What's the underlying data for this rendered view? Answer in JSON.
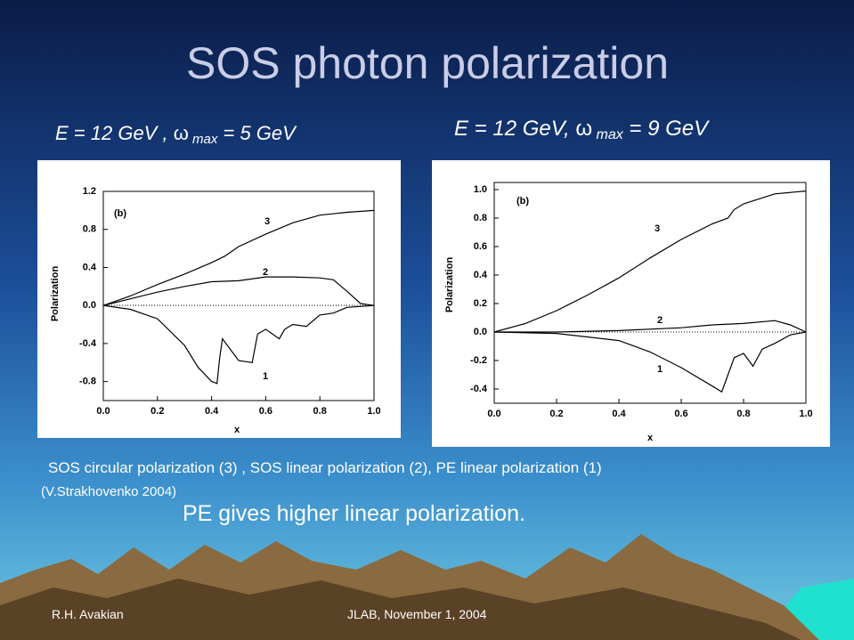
{
  "title": "SOS photon polarization",
  "headings": [
    {
      "prefix": "E = 12 GeV , ",
      "symbol": "ω",
      "sub": " max",
      "suffix": " = 5 GeV"
    },
    {
      "prefix": "E = 12 GeV, ",
      "symbol": "ω",
      "sub": " max",
      "suffix": " = 9 GeV"
    }
  ],
  "caption": "SOS circular polarization (3) , SOS linear polarization (2),  PE linear polarization (1)",
  "citation": "(V.Strakhovenko 2004)",
  "conclusion": "PE gives higher linear polarization.",
  "footer": {
    "author": "R.H. Avakian",
    "date": "JLAB, November 1, 2004"
  },
  "chart_data": [
    {
      "type": "line",
      "x_label": "x",
      "y_label": "Polarization",
      "panel_label": "(b)",
      "xlim": [
        0,
        1
      ],
      "ylim": [
        -1.0,
        1.2
      ],
      "xticks": [
        {
          "value": 0,
          "label": "0.0"
        },
        0.2,
        0.4,
        0.6,
        0.8,
        {
          "value": 1,
          "label": "1.0"
        }
      ],
      "yticks": [
        1.2,
        0.8,
        0.4,
        {
          "value": 0,
          "label": "0.0"
        },
        -0.4,
        -0.8
      ],
      "series": [
        {
          "name": "3",
          "color": "#000000",
          "x": [
            0,
            0.1,
            0.2,
            0.3,
            0.4,
            0.45,
            0.5,
            0.6,
            0.7,
            0.8,
            0.9,
            1.0
          ],
          "values": [
            0,
            0.1,
            0.22,
            0.33,
            0.45,
            0.52,
            0.62,
            0.75,
            0.87,
            0.95,
            0.98,
            1.0
          ]
        },
        {
          "name": "2",
          "color": "#000000",
          "x": [
            0,
            0.1,
            0.2,
            0.3,
            0.4,
            0.5,
            0.6,
            0.7,
            0.8,
            0.85,
            0.9,
            0.95,
            1.0
          ],
          "values": [
            0,
            0.07,
            0.14,
            0.2,
            0.25,
            0.26,
            0.3,
            0.3,
            0.29,
            0.27,
            0.15,
            0.02,
            0
          ]
        },
        {
          "name": "1",
          "color": "#000000",
          "x": [
            0,
            0.1,
            0.2,
            0.3,
            0.35,
            0.4,
            0.42,
            0.43,
            0.44,
            0.5,
            0.55,
            0.57,
            0.6,
            0.65,
            0.67,
            0.7,
            0.75,
            0.8,
            0.85,
            0.9,
            1.0
          ],
          "values": [
            0,
            -0.04,
            -0.14,
            -0.42,
            -0.65,
            -0.8,
            -0.82,
            -0.55,
            -0.35,
            -0.58,
            -0.6,
            -0.3,
            -0.25,
            -0.35,
            -0.25,
            -0.2,
            -0.22,
            -0.1,
            -0.08,
            -0.02,
            0
          ]
        }
      ]
    },
    {
      "type": "line",
      "x_label": "x",
      "y_label": "Polarization",
      "panel_label": "(b)",
      "xlim": [
        0,
        1
      ],
      "ylim": [
        -0.5,
        1.05
      ],
      "xticks": [
        {
          "value": 0,
          "label": "0.0"
        },
        0.2,
        0.4,
        0.6,
        0.8,
        {
          "value": 1,
          "label": "1.0"
        }
      ],
      "yticks": [
        {
          "value": 1,
          "label": "1.0"
        },
        0.8,
        0.6,
        0.4,
        0.2,
        {
          "value": 0,
          "label": "0.0"
        },
        -0.2,
        -0.4
      ],
      "series": [
        {
          "name": "3",
          "color": "#000000",
          "x": [
            0,
            0.1,
            0.2,
            0.3,
            0.4,
            0.5,
            0.6,
            0.7,
            0.75,
            0.77,
            0.8,
            0.9,
            1.0
          ],
          "values": [
            0,
            0.06,
            0.15,
            0.26,
            0.38,
            0.52,
            0.65,
            0.76,
            0.8,
            0.86,
            0.9,
            0.97,
            0.99
          ]
        },
        {
          "name": "2",
          "color": "#000000",
          "x": [
            0,
            0.2,
            0.4,
            0.6,
            0.7,
            0.8,
            0.9,
            0.95,
            1.0
          ],
          "values": [
            0,
            0,
            0.01,
            0.03,
            0.05,
            0.06,
            0.08,
            0.05,
            0
          ]
        },
        {
          "name": "1",
          "color": "#000000",
          "x": [
            0,
            0.2,
            0.4,
            0.5,
            0.6,
            0.7,
            0.73,
            0.75,
            0.77,
            0.8,
            0.83,
            0.86,
            0.9,
            0.95,
            1.0
          ],
          "values": [
            0,
            -0.01,
            -0.06,
            -0.14,
            -0.25,
            -0.38,
            -0.42,
            -0.3,
            -0.18,
            -0.15,
            -0.24,
            -0.12,
            -0.08,
            -0.02,
            0
          ]
        }
      ]
    }
  ]
}
